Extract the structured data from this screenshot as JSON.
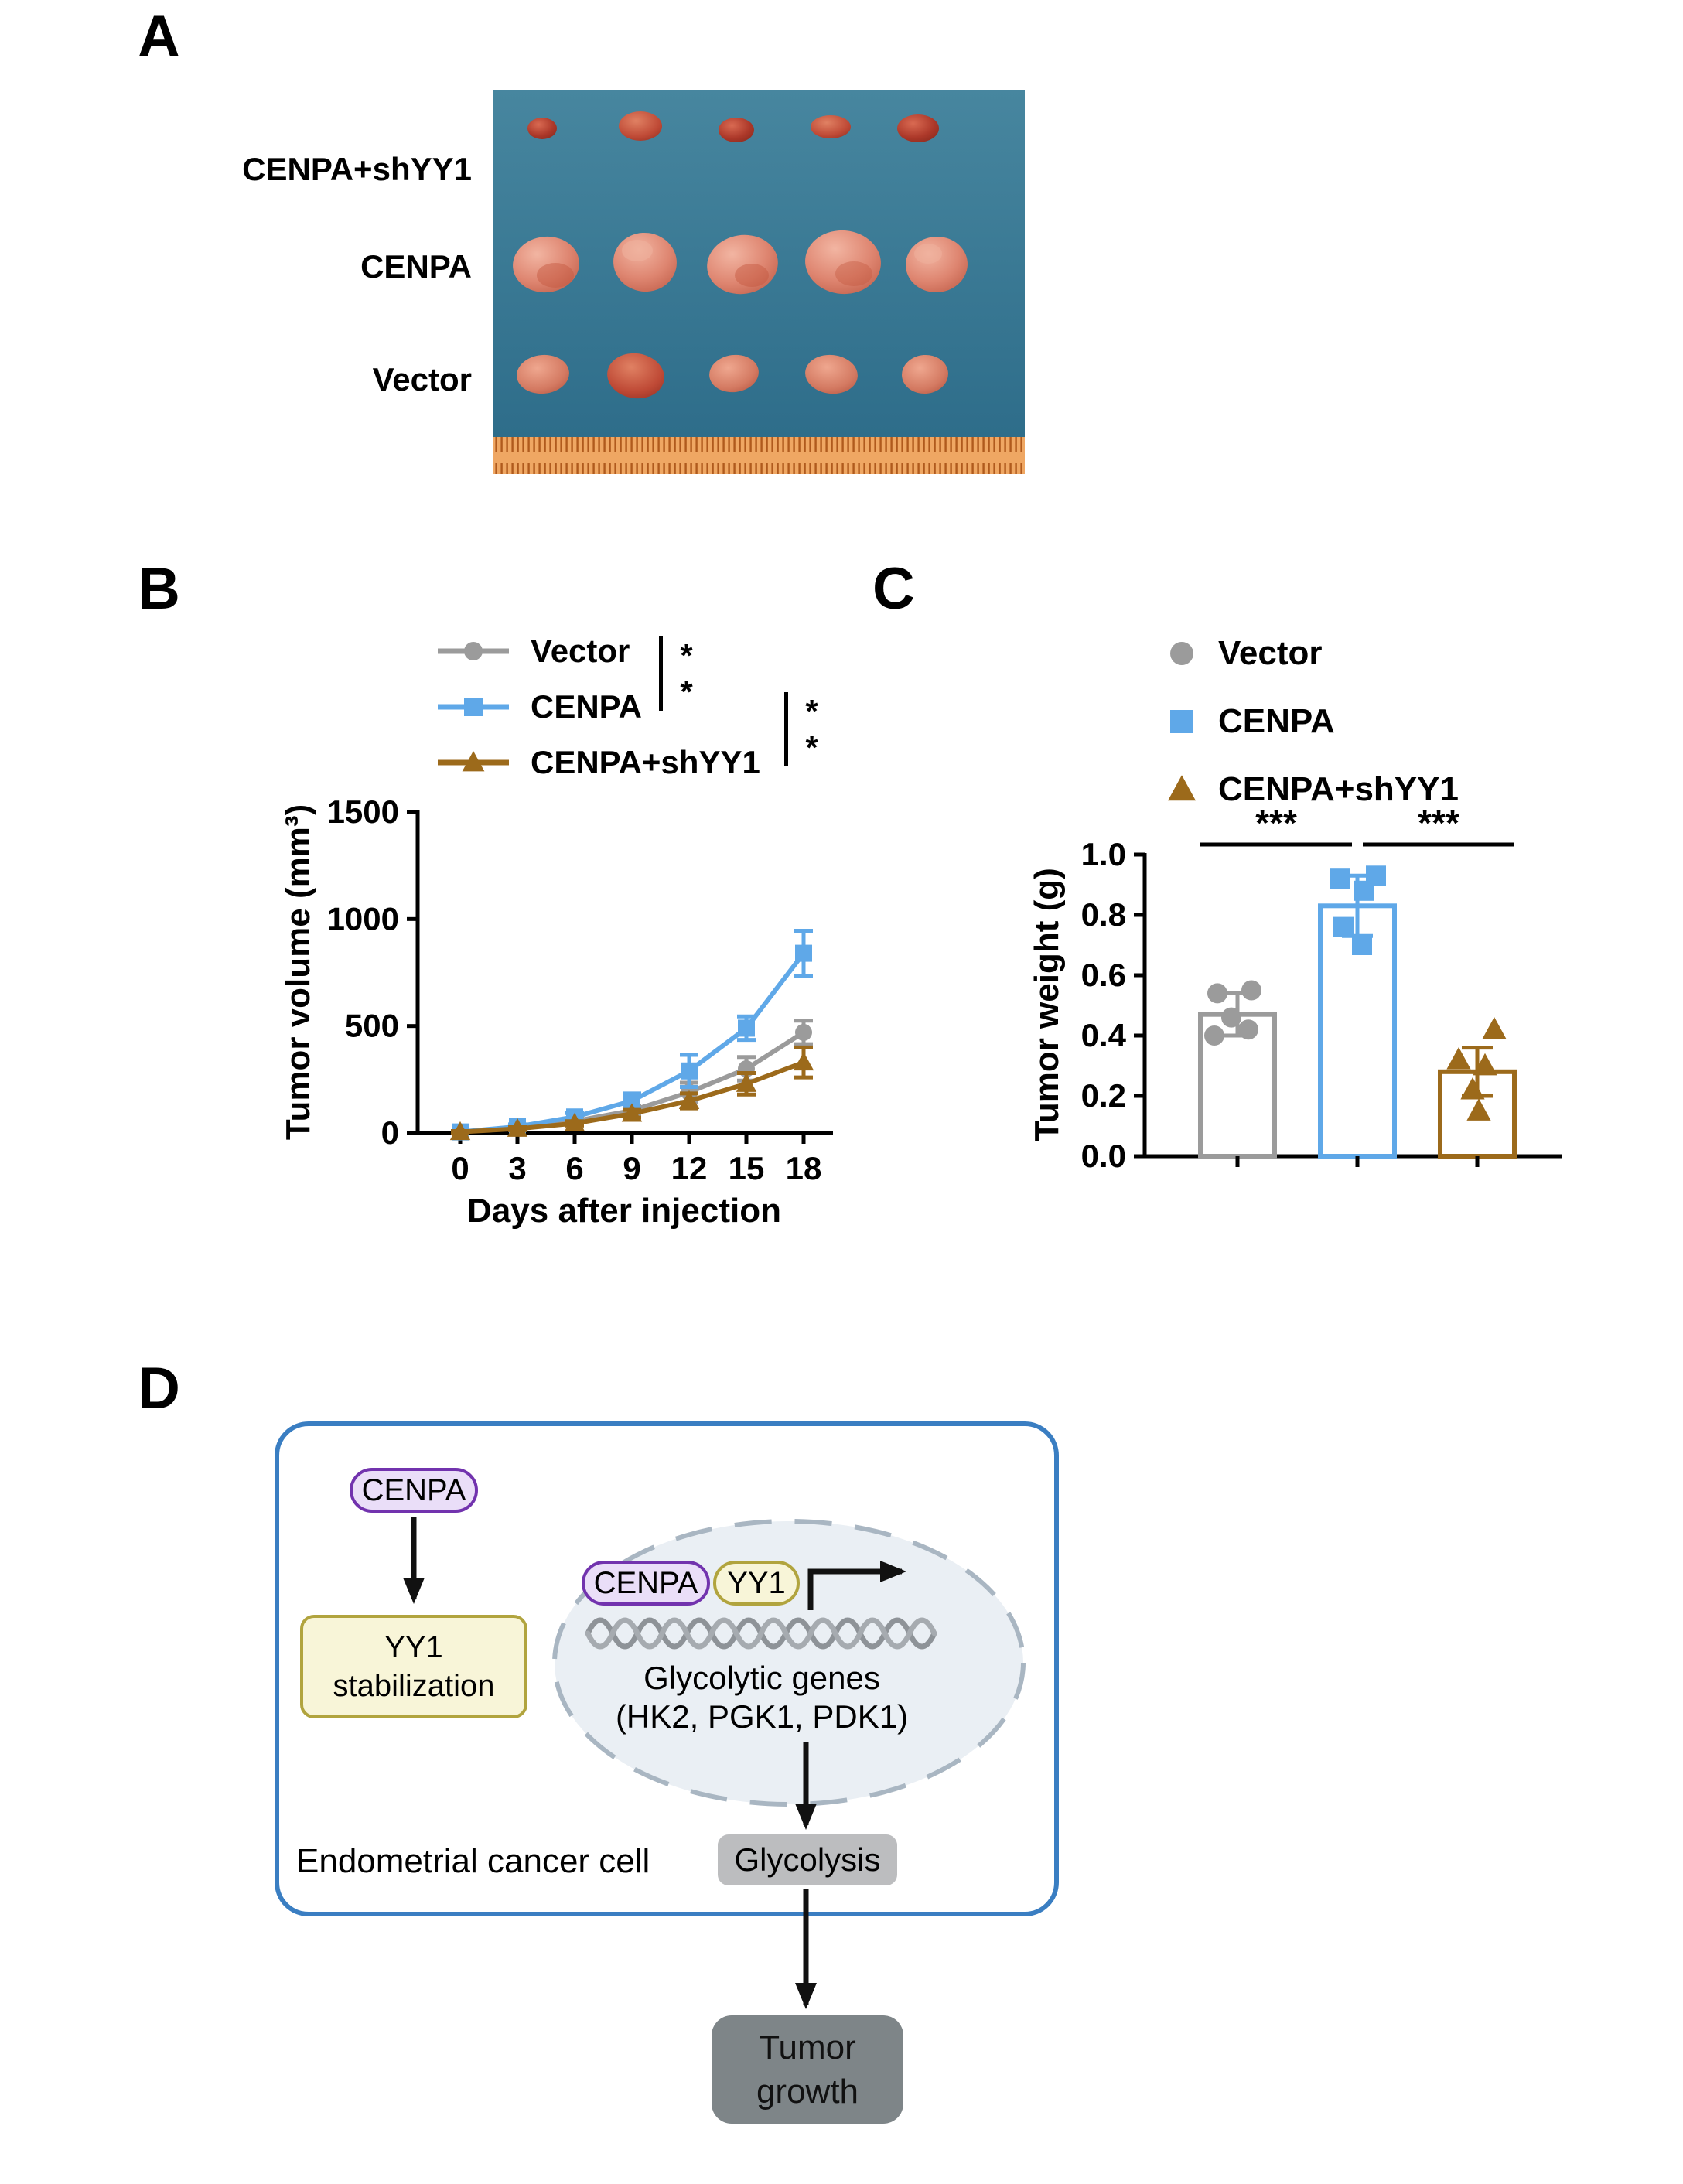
{
  "panel_labels": {
    "a": "A",
    "b": "B",
    "c": "C",
    "d": "D"
  },
  "panel_a": {
    "row_labels": [
      "CENPA+shYY1",
      "CENPA",
      "Vector"
    ]
  },
  "chart_data": [
    {
      "type": "line",
      "title": "",
      "xlabel": "Days after injection",
      "ylabel": "Tumor volume (mm³)",
      "x": [
        0,
        3,
        6,
        9,
        12,
        15,
        18
      ],
      "xlim": [
        -2,
        20
      ],
      "ylim": [
        0,
        1500
      ],
      "yticks": [
        0,
        500,
        1000,
        1500
      ],
      "grid": false,
      "legend_position": "top-left",
      "series": [
        {
          "name": "Vector",
          "color": "#9b9b9b",
          "marker": "circle",
          "values": [
            5,
            25,
            55,
            105,
            190,
            300,
            470
          ],
          "errors": [
            4,
            8,
            12,
            20,
            45,
            55,
            55
          ]
        },
        {
          "name": "CENPA",
          "color": "#5fa8e8",
          "marker": "square",
          "values": [
            5,
            30,
            75,
            150,
            290,
            490,
            840
          ],
          "errors": [
            4,
            10,
            18,
            35,
            75,
            55,
            105
          ]
        },
        {
          "name": "CENPA+shYY1",
          "color": "#9c6a1b",
          "marker": "triangle",
          "values": [
            5,
            20,
            45,
            90,
            150,
            230,
            330
          ],
          "errors": [
            4,
            7,
            10,
            18,
            35,
            50,
            70
          ]
        }
      ],
      "significance": [
        {
          "between": [
            "Vector",
            "CENPA"
          ],
          "label": "**"
        },
        {
          "between": [
            "CENPA",
            "CENPA+shYY1"
          ],
          "label": "**"
        }
      ]
    },
    {
      "type": "bar",
      "title": "",
      "xlabel": "",
      "ylabel": "Tumor weight (g)",
      "categories": [
        "Vector",
        "CENPA",
        "CENPA+shYY1"
      ],
      "ylim": [
        0,
        1.0
      ],
      "ytick_labels": [
        "0.0",
        "0.2",
        "0.4",
        "0.6",
        "0.8",
        "1.0"
      ],
      "grid": false,
      "means": [
        0.47,
        0.83,
        0.28
      ],
      "errors": [
        0.07,
        0.1,
        0.08
      ],
      "points": [
        [
          0.4,
          0.42,
          0.46,
          0.54,
          0.55
        ],
        [
          0.7,
          0.76,
          0.88,
          0.92,
          0.93
        ],
        [
          0.15,
          0.22,
          0.3,
          0.32,
          0.42
        ]
      ],
      "x_offsets": [
        [
          -30,
          14,
          -8,
          -26,
          18
        ],
        [
          6,
          -18,
          8,
          -22,
          24
        ],
        [
          2,
          -6,
          10,
          -24,
          22
        ]
      ],
      "colors": [
        "#9b9b9b",
        "#5fa8e8",
        "#9c6a1b"
      ],
      "markers": [
        "circle",
        "square",
        "triangle"
      ],
      "significance": [
        {
          "between": [
            "Vector",
            "CENPA"
          ],
          "label": "***"
        },
        {
          "between": [
            "CENPA",
            "CENPA+shYY1"
          ],
          "label": "***"
        }
      ]
    }
  ],
  "panel_d": {
    "cenpa_label": "CENPA",
    "yy1_stab_line1": "YY1",
    "yy1_stab_line2": "stabilization",
    "cenpa_inner_label": "CENPA",
    "yy1_inner_label": "YY1",
    "genes_line1": "Glycolytic genes",
    "genes_line2": "(HK2, PGK1, PDK1)",
    "glycolysis_label": "Glycolysis",
    "cell_label": "Endometrial cancer cell",
    "tumor_line1": "Tumor",
    "tumor_line2": "growth"
  }
}
